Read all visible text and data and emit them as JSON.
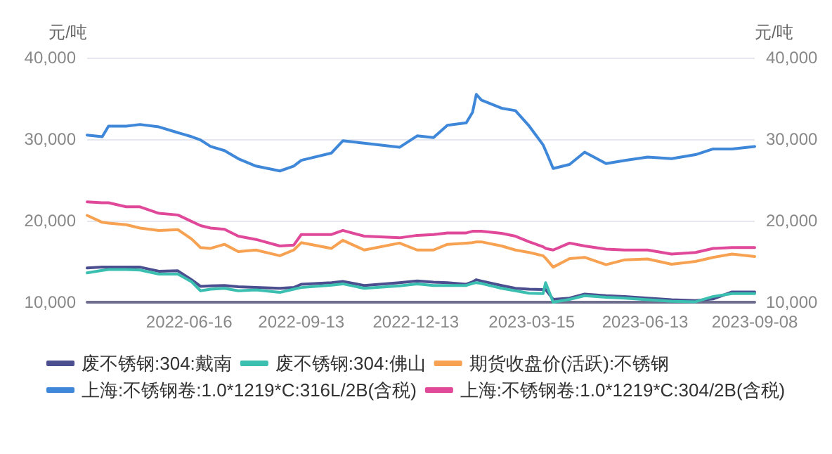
{
  "chart_data": {
    "type": "line",
    "ylabel": "元/吨",
    "y2label": "元/吨",
    "x": [
      "2022-03-27",
      "2022-04-08",
      "2022-04-13",
      "2022-04-27",
      "2022-05-08",
      "2022-05-23",
      "2022-06-07",
      "2022-06-18",
      "2022-06-25",
      "2022-07-03",
      "2022-07-14",
      "2022-07-25",
      "2022-08-08",
      "2022-08-27",
      "2022-09-07",
      "2022-09-13",
      "2022-10-07",
      "2022-10-16",
      "2022-11-02",
      "2022-11-30",
      "2022-12-14",
      "2022-12-27",
      "2023-01-07",
      "2023-01-22",
      "2023-01-27",
      "2023-01-30",
      "2023-02-03",
      "2023-02-19",
      "2023-03-02",
      "2023-03-13",
      "2023-03-24",
      "2023-03-26",
      "2023-04-01",
      "2023-04-14",
      "2023-04-26",
      "2023-05-13",
      "2023-05-28",
      "2023-06-15",
      "2023-07-04",
      "2023-07-23",
      "2023-08-06",
      "2023-08-21",
      "2023-09-08"
    ],
    "series": [
      {
        "name": "废不锈钢:304:戴南",
        "color": "#4b4f8f",
        "values": [
          14200,
          14300,
          14300,
          14300,
          14300,
          13800,
          13850,
          12750,
          11950,
          12000,
          12050,
          11900,
          11800,
          11700,
          11800,
          12200,
          12400,
          12550,
          12050,
          12400,
          12600,
          12450,
          12400,
          12200,
          12500,
          12750,
          12600,
          12050,
          11700,
          11600,
          11550,
          11550,
          10350,
          10500,
          11000,
          10800,
          10700,
          10500,
          10300,
          10200,
          10400,
          11250,
          11250
        ]
      },
      {
        "name": "废不锈钢:304:佛山",
        "color": "#3bbfb0",
        "values": [
          13600,
          13900,
          14000,
          14000,
          13950,
          13450,
          13450,
          12500,
          11400,
          11600,
          11700,
          11400,
          11500,
          11200,
          11600,
          11800,
          12100,
          12250,
          11700,
          12000,
          12250,
          12050,
          12050,
          12050,
          12300,
          12400,
          12300,
          11700,
          11400,
          11100,
          11050,
          12400,
          10000,
          10350,
          10800,
          10600,
          10500,
          10300,
          10100,
          10050,
          10700,
          11050,
          11050
        ]
      },
      {
        "name": "期货收盘价(活跃):不锈钢",
        "color": "#f7a252",
        "values": [
          20650,
          19800,
          19700,
          19500,
          19100,
          18800,
          18900,
          17750,
          16700,
          16600,
          17100,
          16200,
          16400,
          15700,
          16400,
          17300,
          16600,
          17600,
          16400,
          17250,
          16400,
          16400,
          17100,
          17250,
          17300,
          17400,
          17400,
          16900,
          16400,
          16100,
          15700,
          15400,
          14300,
          15350,
          15500,
          14600,
          15200,
          15300,
          14650,
          15000,
          15500,
          15900,
          15600
        ]
      },
      {
        "name": "上海:不锈钢卷:1.0*1219*C:316L/2B(含税)",
        "color": "#3f87d8",
        "values": [
          30500,
          30300,
          31600,
          31600,
          31800,
          31500,
          30800,
          30300,
          29900,
          29100,
          28600,
          27600,
          26700,
          26100,
          26700,
          27400,
          28300,
          29800,
          29500,
          29000,
          30400,
          30200,
          31700,
          32000,
          33300,
          35500,
          34800,
          33800,
          33500,
          31600,
          29300,
          28600,
          26400,
          26900,
          28400,
          27000,
          27400,
          27800,
          27600,
          28100,
          28800,
          28800,
          29100
        ]
      },
      {
        "name": "上海:不锈钢卷:1.0*1219*C:304/2B(含税)",
        "color": "#e0499a",
        "values": [
          22300,
          22200,
          22200,
          21700,
          21700,
          20900,
          20700,
          19900,
          19400,
          19100,
          18950,
          18100,
          17700,
          16900,
          17000,
          18300,
          18300,
          18800,
          18100,
          17900,
          18200,
          18300,
          18500,
          18500,
          18700,
          18700,
          18700,
          18450,
          18100,
          17400,
          16800,
          16600,
          16400,
          17250,
          16900,
          16500,
          16400,
          16400,
          15900,
          16100,
          16600,
          16700,
          16700
        ]
      }
    ],
    "xlim": [
      "2022-03-27",
      "2023-09-08"
    ],
    "xticks": [
      "2022-06-16",
      "2022-09-13",
      "2022-12-13",
      "2023-03-15",
      "2023-06-13",
      "2023-09-08"
    ],
    "ylim": [
      10000,
      40000
    ],
    "yticks": [
      {
        "value": 10000,
        "label": "10,000"
      },
      {
        "value": 20000,
        "label": "20,000"
      },
      {
        "value": 30000,
        "label": "30,000"
      },
      {
        "value": 40000,
        "label": "40,000"
      }
    ],
    "y2lim": [
      10000,
      40000
    ],
    "y2ticks": [
      {
        "value": 10000,
        "label": "10,000"
      },
      {
        "value": 20000,
        "label": "20,000"
      },
      {
        "value": 30000,
        "label": "30,000"
      },
      {
        "value": 40000,
        "label": "40,000"
      }
    ],
    "grid": "y",
    "legend": "bottom",
    "marker": "none",
    "line_style": "solid"
  }
}
